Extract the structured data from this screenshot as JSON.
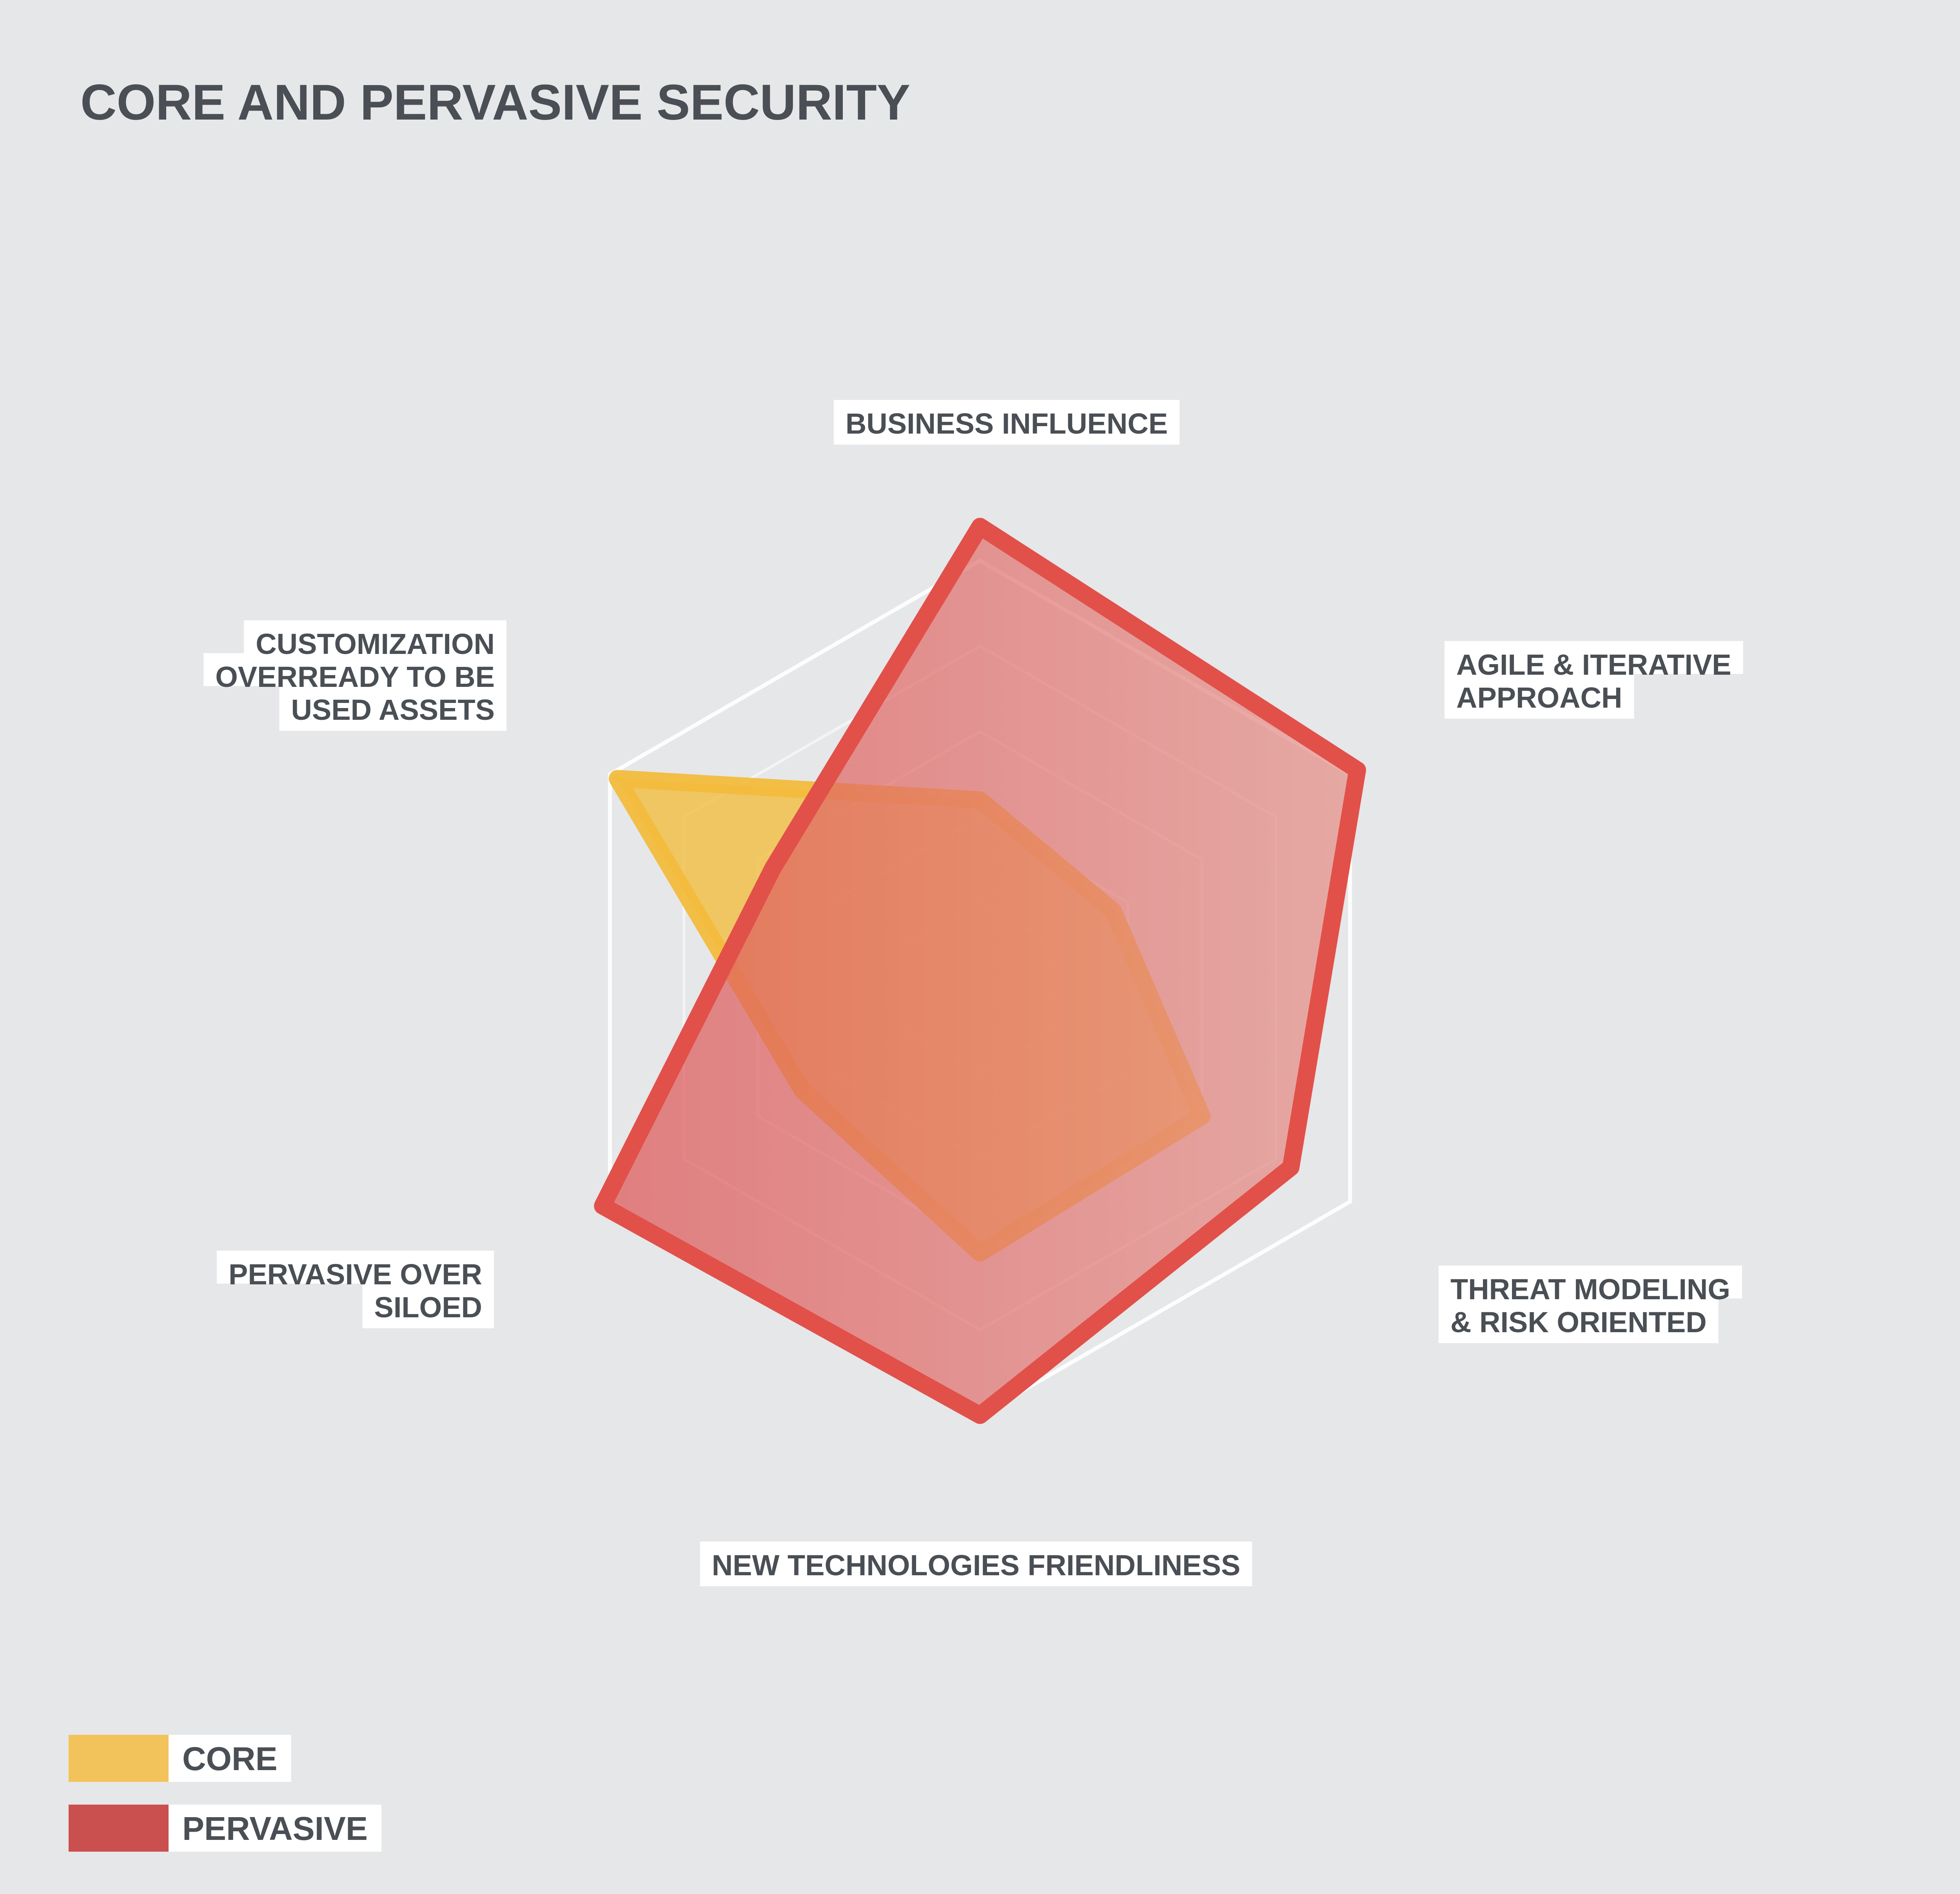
{
  "chart_data": {
    "type": "radar",
    "title": "CORE AND PERVASIVE SECURITY",
    "axes": [
      "BUSINESS INFLUENCE",
      "AGILE & ITERATIVE APPROACH",
      "THREAT MODELING & RISK ORIENTED",
      "NEW TECHNOLOGIES FRIENDLINESS",
      "PERVASIVE OVER SILOED",
      "CUSTOMIZATION OVERREADY TO BE USED ASSETS"
    ],
    "axis_label_lines": [
      [
        "BUSINESS INFLUENCE"
      ],
      [
        "AGILE & ITERATIVE",
        "APPROACH"
      ],
      [
        "THREAT MODELING",
        "& RISK ORIENTED"
      ],
      [
        "NEW TECHNOLOGIES FRIENDLINESS"
      ],
      [
        "PERVASIVE OVER",
        "SILOED"
      ],
      [
        "CUSTOMIZATION",
        "OVERREADY TO BE",
        "USED ASSETS"
      ]
    ],
    "rmax": 5,
    "rings": [
      1,
      2,
      3,
      4,
      5
    ],
    "series": [
      {
        "name": "CORE",
        "color": "#f2bc3c",
        "values": [
          2.2,
          1.8,
          3.0,
          3.1,
          2.4,
          4.9
        ]
      },
      {
        "name": "PERVASIVE",
        "color": "#e2504a",
        "values": [
          5.4,
          5.1,
          4.2,
          5.0,
          5.1,
          2.8
        ]
      }
    ]
  },
  "legend": [
    {
      "label": "CORE",
      "color": "#f2c35a"
    },
    {
      "label": "PERVASIVE",
      "color": "#c9504e"
    }
  ]
}
